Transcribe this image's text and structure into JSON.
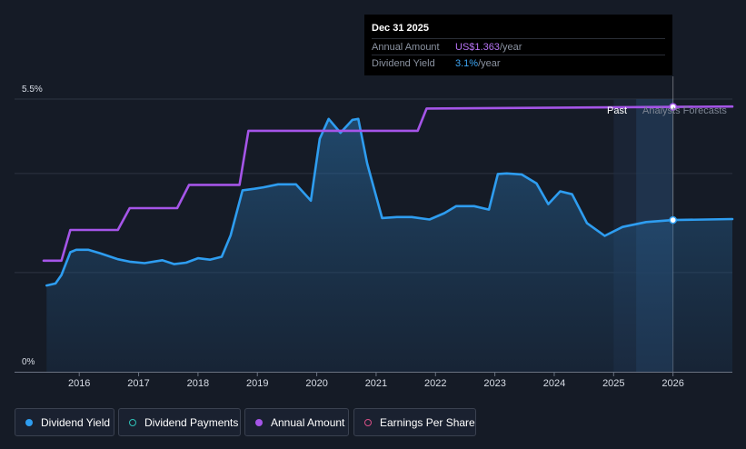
{
  "chart_data": {
    "type": "area",
    "y_ticks": [
      "5.5%",
      "0%"
    ],
    "x_ticks": [
      "2016",
      "2017",
      "2018",
      "2019",
      "2020",
      "2021",
      "2022",
      "2023",
      "2024",
      "2025",
      "2026"
    ],
    "y_range": [
      0,
      5.5
    ],
    "x_range": [
      2015.4,
      2027.0
    ],
    "region_labels": {
      "past": "Past",
      "forecast": "Analysts Forecasts"
    },
    "past_end": 2025.0,
    "forecast_start": 2026.0,
    "series": [
      {
        "name": "Dividend Yield",
        "color": "#2e9df0",
        "points": [
          [
            2015.45,
            1.74
          ],
          [
            2015.6,
            1.78
          ],
          [
            2015.7,
            1.95
          ],
          [
            2015.85,
            2.41
          ],
          [
            2015.95,
            2.46
          ],
          [
            2016.15,
            2.46
          ],
          [
            2016.35,
            2.39
          ],
          [
            2016.65,
            2.27
          ],
          [
            2016.85,
            2.22
          ],
          [
            2017.1,
            2.19
          ],
          [
            2017.4,
            2.25
          ],
          [
            2017.6,
            2.17
          ],
          [
            2017.8,
            2.2
          ],
          [
            2018.0,
            2.29
          ],
          [
            2018.2,
            2.26
          ],
          [
            2018.4,
            2.32
          ],
          [
            2018.55,
            2.75
          ],
          [
            2018.75,
            3.66
          ],
          [
            2018.95,
            3.69
          ],
          [
            2019.1,
            3.72
          ],
          [
            2019.35,
            3.78
          ],
          [
            2019.65,
            3.78
          ],
          [
            2019.9,
            3.45
          ],
          [
            2020.05,
            4.7
          ],
          [
            2020.2,
            5.1
          ],
          [
            2020.4,
            4.82
          ],
          [
            2020.6,
            5.08
          ],
          [
            2020.7,
            5.1
          ],
          [
            2020.85,
            4.2
          ],
          [
            2021.1,
            3.1
          ],
          [
            2021.35,
            3.12
          ],
          [
            2021.6,
            3.12
          ],
          [
            2021.9,
            3.07
          ],
          [
            2022.15,
            3.2
          ],
          [
            2022.35,
            3.34
          ],
          [
            2022.65,
            3.34
          ],
          [
            2022.9,
            3.27
          ],
          [
            2023.05,
            3.99
          ],
          [
            2023.2,
            4.0
          ],
          [
            2023.45,
            3.98
          ],
          [
            2023.7,
            3.8
          ],
          [
            2023.9,
            3.38
          ],
          [
            2024.1,
            3.64
          ],
          [
            2024.3,
            3.58
          ],
          [
            2024.55,
            3.0
          ],
          [
            2024.85,
            2.74
          ],
          [
            2025.15,
            2.92
          ],
          [
            2025.55,
            3.02
          ],
          [
            2026.0,
            3.06
          ],
          [
            2027.0,
            3.08
          ]
        ]
      },
      {
        "name": "Annual Amount",
        "color": "#a555e8",
        "points": [
          [
            2015.4,
            2.24
          ],
          [
            2015.7,
            2.24
          ],
          [
            2015.85,
            2.86
          ],
          [
            2016.65,
            2.86
          ],
          [
            2016.85,
            3.3
          ],
          [
            2017.65,
            3.3
          ],
          [
            2017.85,
            3.77
          ],
          [
            2018.7,
            3.77
          ],
          [
            2018.85,
            4.86
          ],
          [
            2021.7,
            4.86
          ],
          [
            2021.85,
            5.31
          ],
          [
            2027.0,
            5.35
          ]
        ]
      }
    ],
    "tooltip": {
      "date": "Dec 31 2025",
      "rows": [
        {
          "label": "Annual Amount",
          "value": "US$1.363",
          "suffix": "/year",
          "color": "#b874f5"
        },
        {
          "label": "Dividend Yield",
          "value": "3.1%",
          "suffix": "/year",
          "color": "#3da6f5"
        }
      ]
    }
  },
  "legend": [
    {
      "label": "Dividend Yield",
      "color": "#2e9df0",
      "filled": true
    },
    {
      "label": "Dividend Payments",
      "color": "#2fc2b8",
      "filled": false
    },
    {
      "label": "Annual Amount",
      "color": "#a555e8",
      "filled": true
    },
    {
      "label": "Earnings Per Share",
      "color": "#d84f86",
      "filled": false
    }
  ]
}
